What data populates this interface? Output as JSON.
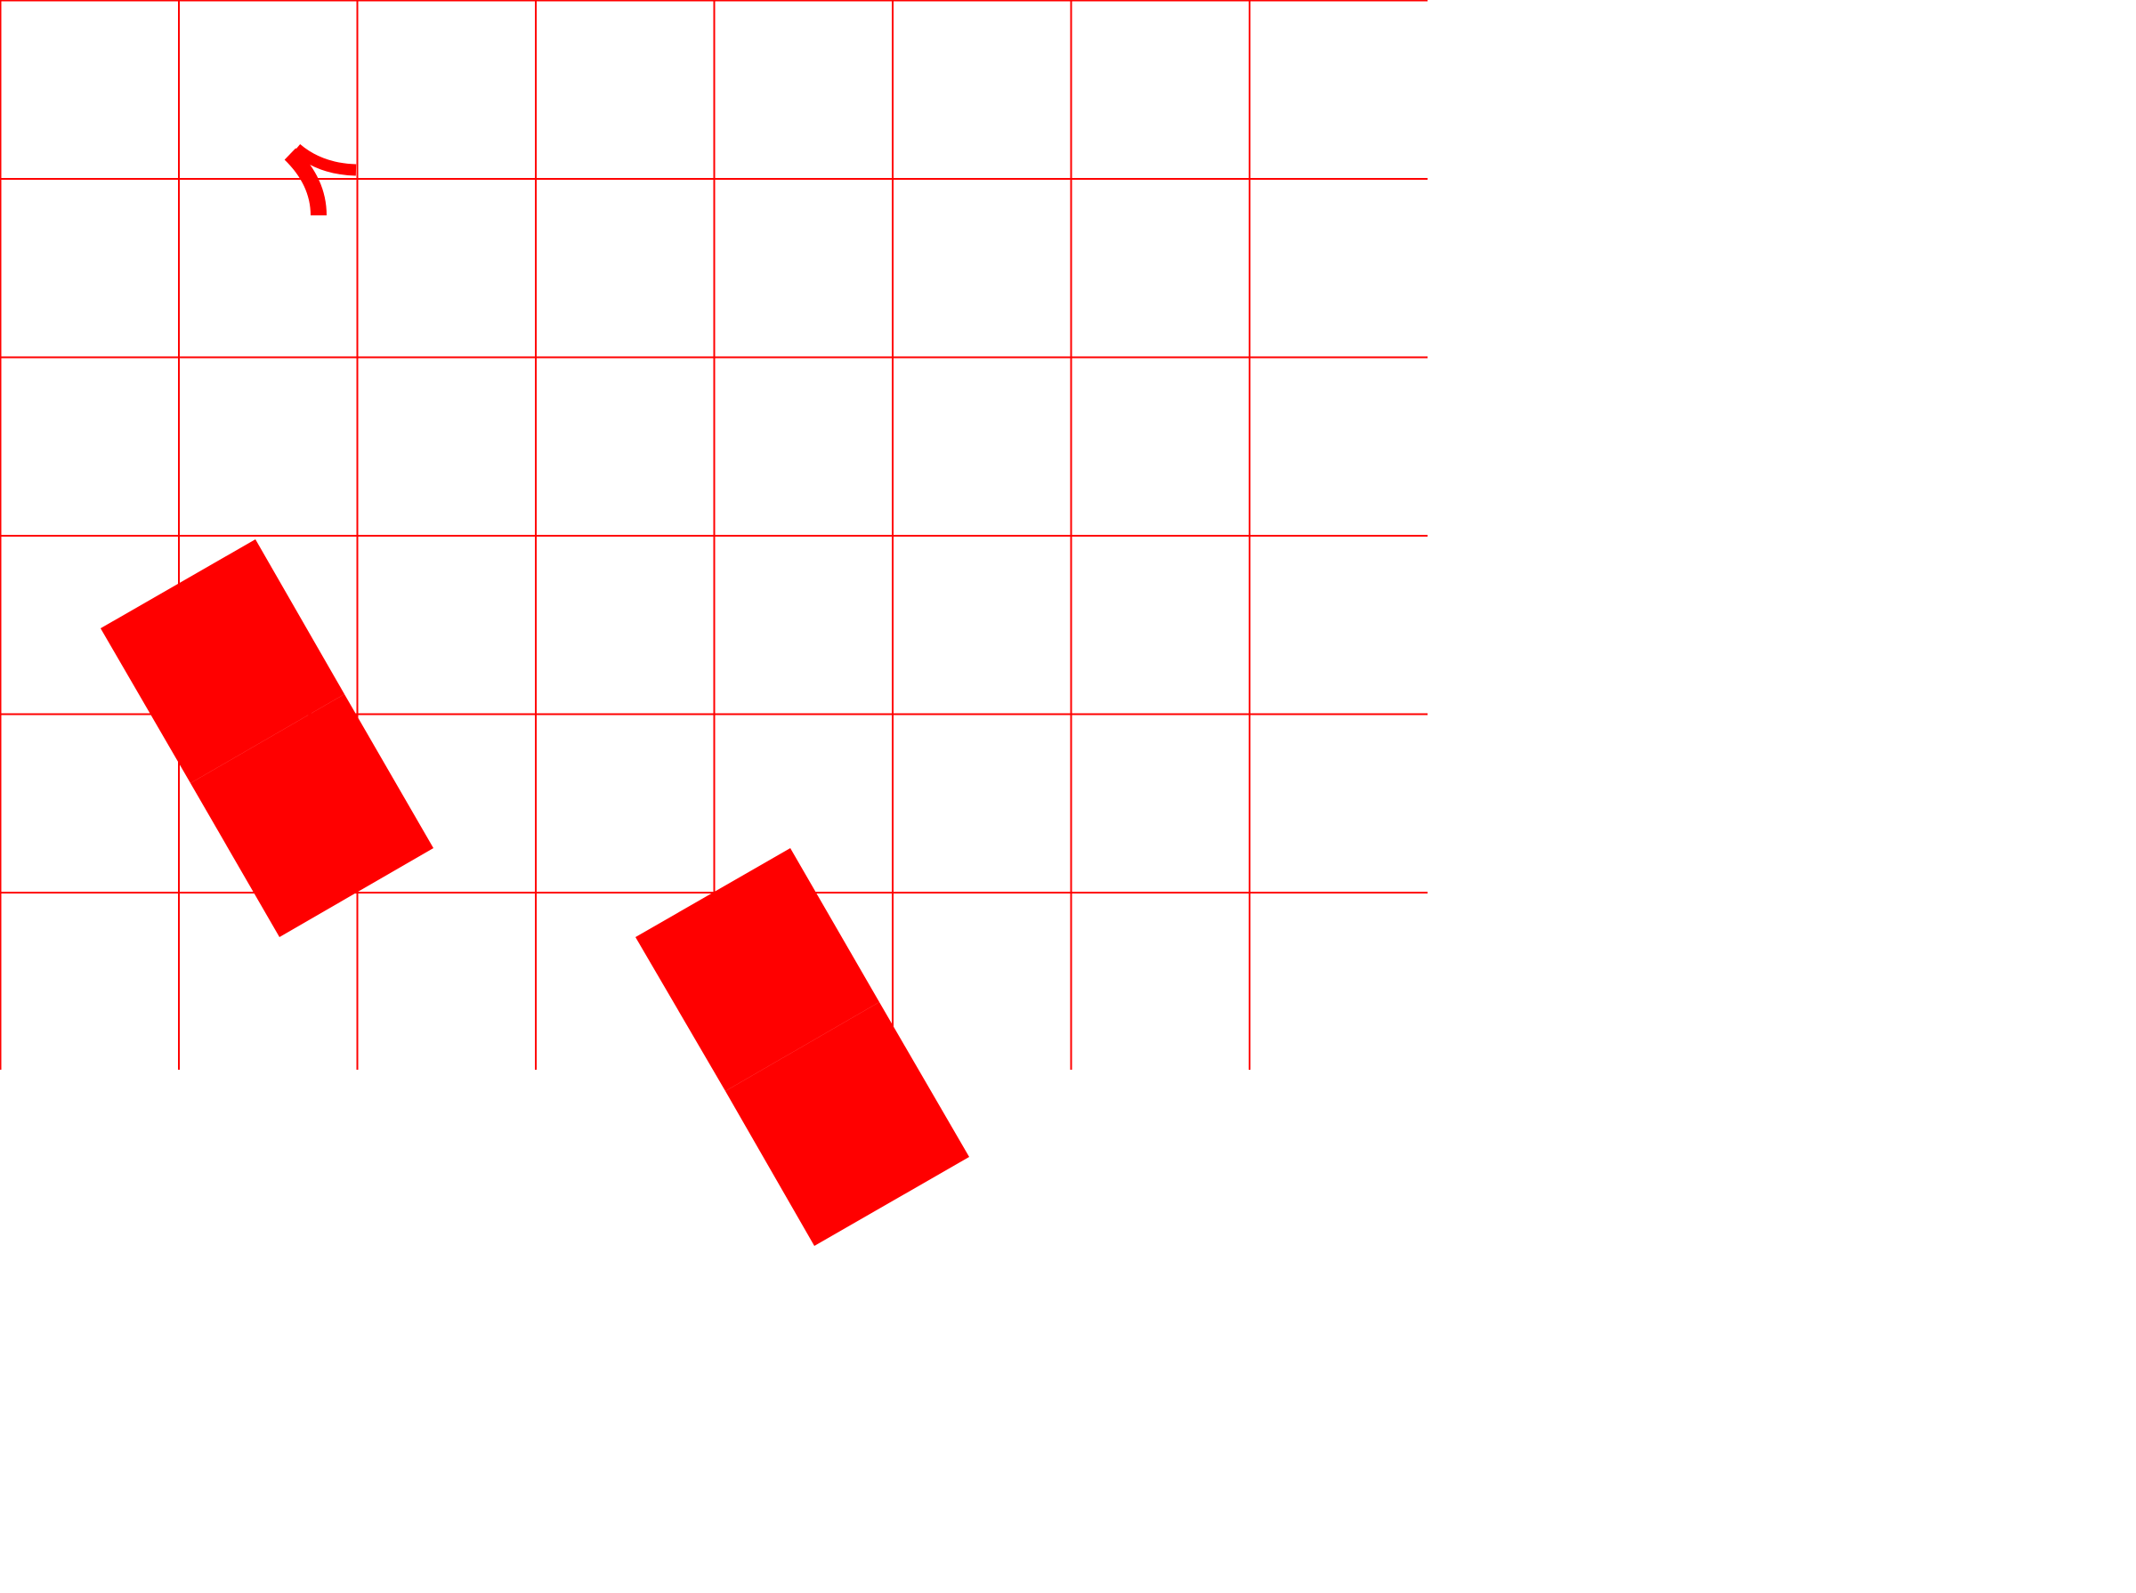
{
  "colors": {
    "background": "#ffffff",
    "grid_line": "#ff0000",
    "shape_fill": "#ff0000",
    "rotation_marker": "#ff0000"
  },
  "grid": {
    "columns": 8,
    "rows": 6
  },
  "shapes": [
    {
      "name": "domino-left",
      "type": "two-square-domino",
      "rotation_deg": -30
    },
    {
      "name": "domino-right",
      "type": "two-square-domino",
      "rotation_deg": -30
    }
  ],
  "rotation_marker": {
    "icon": "rotation-arrow-icon"
  }
}
